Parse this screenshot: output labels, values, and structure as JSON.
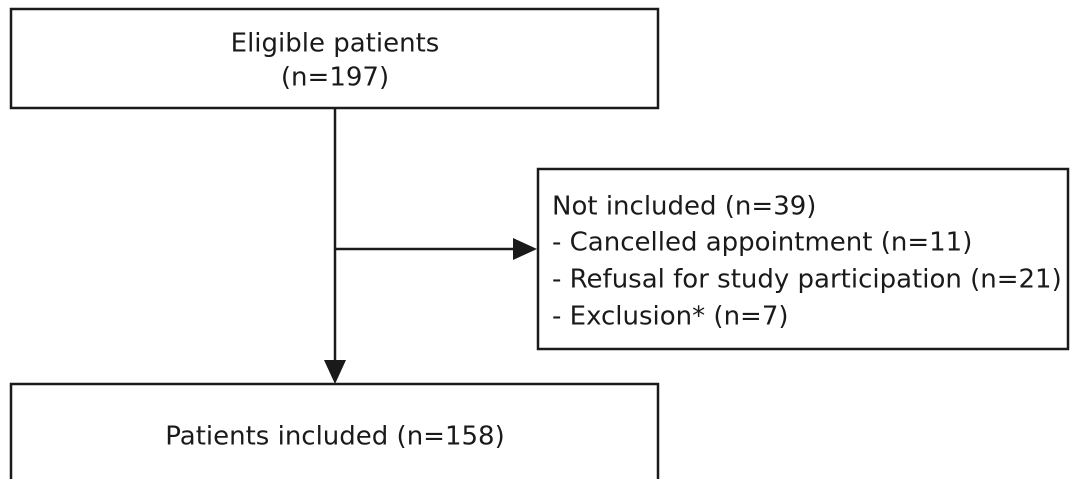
{
  "nodes": [
    {
      "lines": [
        "Eligible patients",
        "(n=197)"
      ]
    },
    {
      "lines": [
        "Not included (n=39)",
        "- Cancelled appointment (n=11)",
        "- Refusal for study participation (n=21)",
        "- Exclusion* (n=7)"
      ]
    },
    {
      "lines": [
        "Patients included (n=158)"
      ]
    }
  ]
}
